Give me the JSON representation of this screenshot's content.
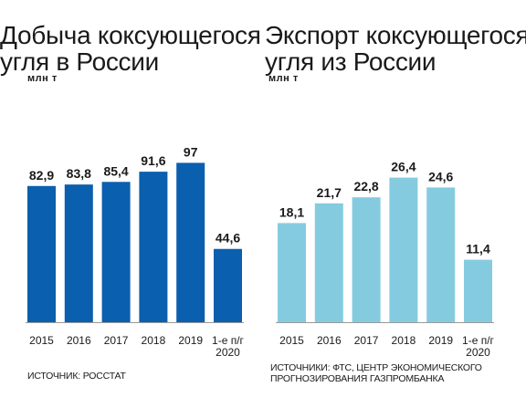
{
  "chart_data": [
    {
      "type": "bar",
      "title": "Добыча коксующегося угля в России",
      "title_lines": [
        "Добыча коксующегося",
        "угля в России"
      ],
      "ylabel": "млн т",
      "categories": [
        "2015",
        "2016",
        "2017",
        "2018",
        "2019",
        "1-е п/г 2020"
      ],
      "category_lines": [
        [
          "2015"
        ],
        [
          "2016"
        ],
        [
          "2017"
        ],
        [
          "2018"
        ],
        [
          "2019"
        ],
        [
          "1-е п/г",
          "2020"
        ]
      ],
      "values": [
        82.9,
        83.8,
        85.4,
        91.6,
        97,
        44.6
      ],
      "value_labels": [
        "82,9",
        "83,8",
        "85,4",
        "91,6",
        "97",
        "44,6"
      ],
      "ylim": [
        0,
        120
      ],
      "color": "#0a5fae",
      "grid": false,
      "source": "ИСТОЧНИК: РОССТАТ"
    },
    {
      "type": "bar",
      "title": "Экспорт коксующегося угля из России",
      "title_lines": [
        "Экспорт коксующегося",
        "угля из России"
      ],
      "ylabel": "млн т",
      "categories": [
        "2015",
        "2016",
        "2017",
        "2018",
        "2019",
        "1-е п/г 2020"
      ],
      "category_lines": [
        [
          "2015"
        ],
        [
          "2016"
        ],
        [
          "2017"
        ],
        [
          "2018"
        ],
        [
          "2019"
        ],
        [
          "1-е п/г",
          "2020"
        ]
      ],
      "values": [
        18.1,
        21.7,
        22.8,
        26.4,
        24.6,
        11.4
      ],
      "value_labels": [
        "18,1",
        "21,7",
        "22,8",
        "26,4",
        "24,6",
        "11,4"
      ],
      "ylim": [
        0,
        36
      ],
      "color": "#84cbe0",
      "grid": false,
      "source_lines": [
        "ИСТОЧНИКИ: ФТС, ЦЕНТР ЭКОНОМИЧЕСКОГО",
        "ПРОГНОЗИРОВАНИЯ ГАЗПРОМБАНКА"
      ]
    }
  ]
}
